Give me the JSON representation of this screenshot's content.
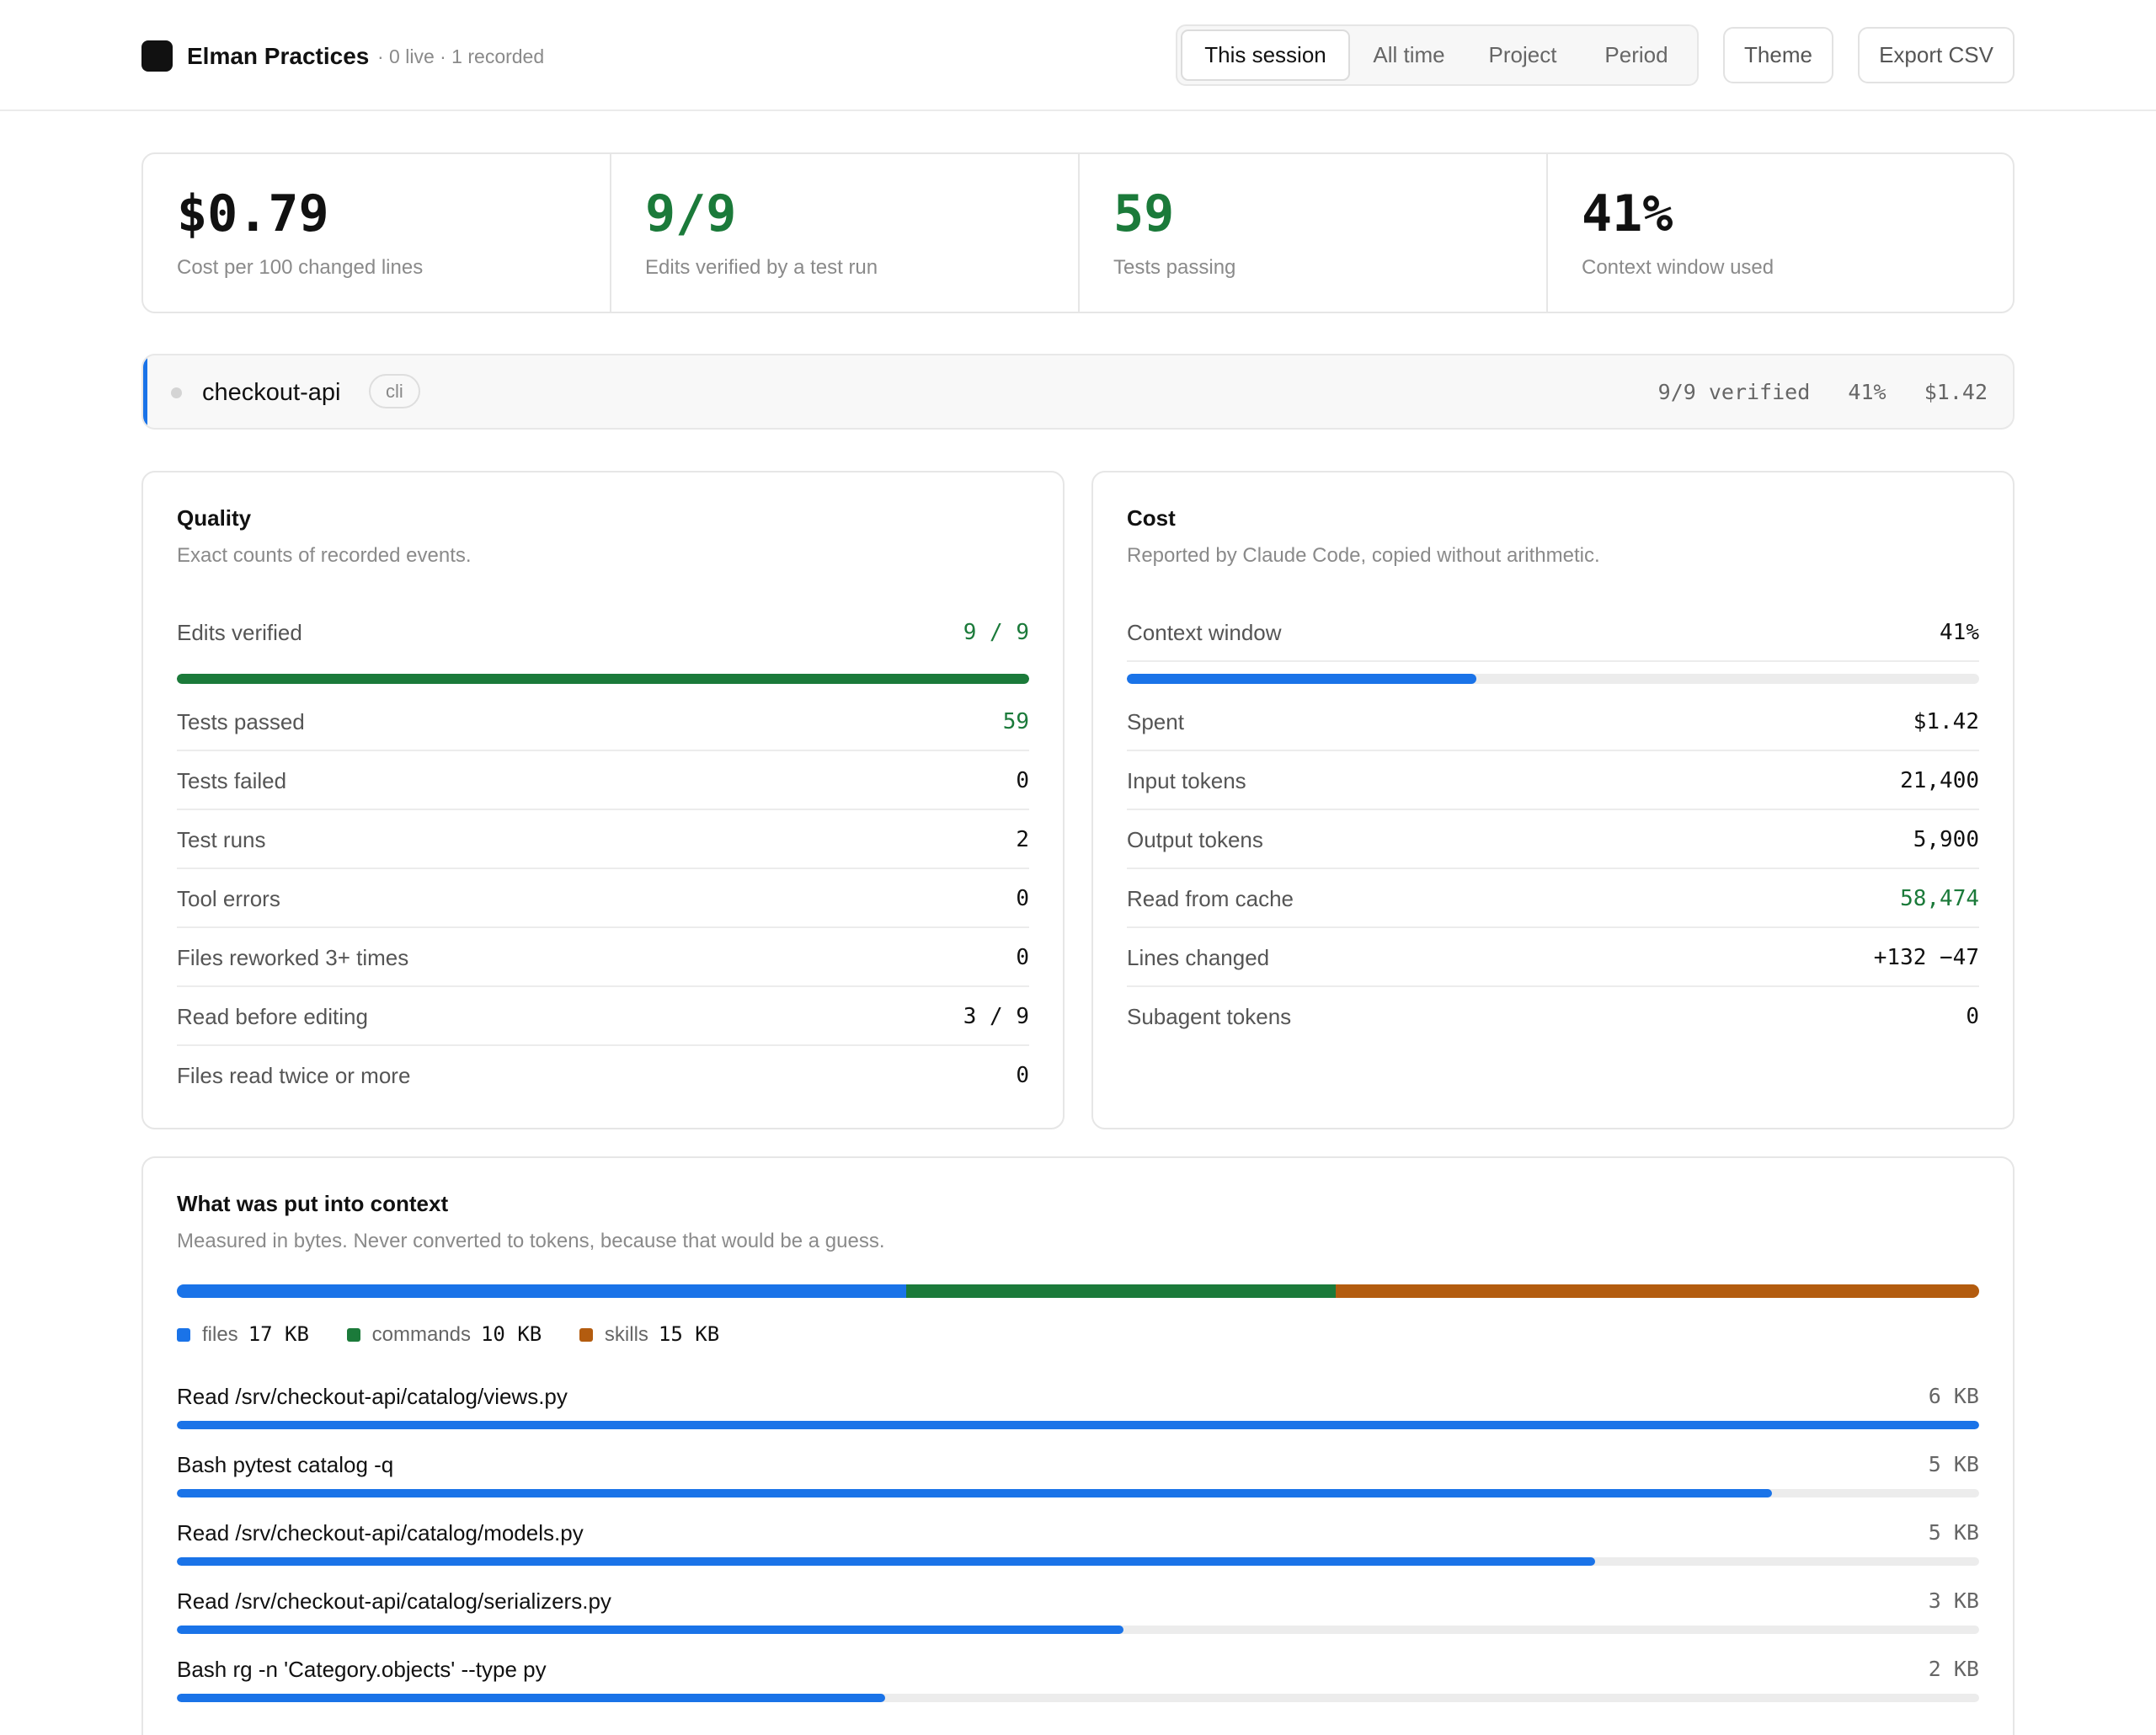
{
  "header": {
    "app_name": "Elman Practices",
    "status": "· 0 live · 1 recorded",
    "tabs": [
      {
        "label": "This session",
        "active": true
      },
      {
        "label": "All time",
        "active": false
      },
      {
        "label": "Project",
        "active": false
      },
      {
        "label": "Period",
        "active": false
      }
    ],
    "theme_label": "Theme",
    "export_label": "Export CSV"
  },
  "stats": [
    {
      "value": "$0.79",
      "label": "Cost per 100 changed lines",
      "color": "#111111"
    },
    {
      "value": "9/9",
      "label": "Edits verified by a test run",
      "color": "#1b7a3a"
    },
    {
      "value": "59",
      "label": "Tests passing",
      "color": "#1b7a3a"
    },
    {
      "value": "41%",
      "label": "Context window used",
      "color": "#111111"
    }
  ],
  "session": {
    "name": "checkout-api",
    "tag": "cli",
    "verified": "9/9 verified",
    "context": "41%",
    "cost": "$1.42"
  },
  "quality": {
    "title": "Quality",
    "subtitle": "Exact counts of recorded events.",
    "edits_verified_label": "Edits verified",
    "edits_verified_value": "9 / 9",
    "edits_verified_fraction": 1.0,
    "rows": [
      {
        "label": "Tests passed",
        "value": "59",
        "green": true
      },
      {
        "label": "Tests failed",
        "value": "0",
        "green": false
      },
      {
        "label": "Test runs",
        "value": "2",
        "green": false
      },
      {
        "label": "Tool errors",
        "value": "0",
        "green": false
      },
      {
        "label": "Files reworked 3+ times",
        "value": "0",
        "green": false
      },
      {
        "label": "Read before editing",
        "value": "3 / 9",
        "green": false
      },
      {
        "label": "Files read twice or more",
        "value": "0",
        "green": false
      }
    ]
  },
  "cost": {
    "title": "Cost",
    "subtitle": "Reported by Claude Code, copied without arithmetic.",
    "context_label": "Context window",
    "context_value": "41%",
    "context_fraction": 0.41,
    "rows": [
      {
        "label": "Spent",
        "value": "$1.42",
        "green": false
      },
      {
        "label": "Input tokens",
        "value": "21,400",
        "green": false
      },
      {
        "label": "Output tokens",
        "value": "5,900",
        "green": false
      },
      {
        "label": "Read from cache",
        "value": "58,474",
        "green": true
      },
      {
        "label": "Lines changed",
        "value": "+132 −47",
        "green": false
      },
      {
        "label": "Subagent tokens",
        "value": "0",
        "green": false
      }
    ]
  },
  "context": {
    "title": "What was put into context",
    "subtitle": "Measured in bytes. Never converted to tokens, because that would be a guess.",
    "breakdown": [
      {
        "name": "files",
        "value": "17 KB",
        "kb": 17,
        "color": "#1a73e8"
      },
      {
        "name": "commands",
        "value": "10 KB",
        "kb": 10,
        "color": "#1b7a3a"
      },
      {
        "name": "skills",
        "value": "15 KB",
        "kb": 15,
        "color": "#b35c0f"
      }
    ],
    "items": [
      {
        "label": "Read /srv/checkout-api/catalog/views.py",
        "size": "6 KB",
        "fraction": 1.0
      },
      {
        "label": "Bash pytest catalog -q",
        "size": "5 KB",
        "fraction": 0.885
      },
      {
        "label": "Read /srv/checkout-api/catalog/models.py",
        "size": "5 KB",
        "fraction": 0.787
      },
      {
        "label": "Read /srv/checkout-api/catalog/serializers.py",
        "size": "3 KB",
        "fraction": 0.525
      },
      {
        "label": "Bash rg -n 'Category.objects' --type py",
        "size": "2 KB",
        "fraction": 0.393
      }
    ]
  }
}
